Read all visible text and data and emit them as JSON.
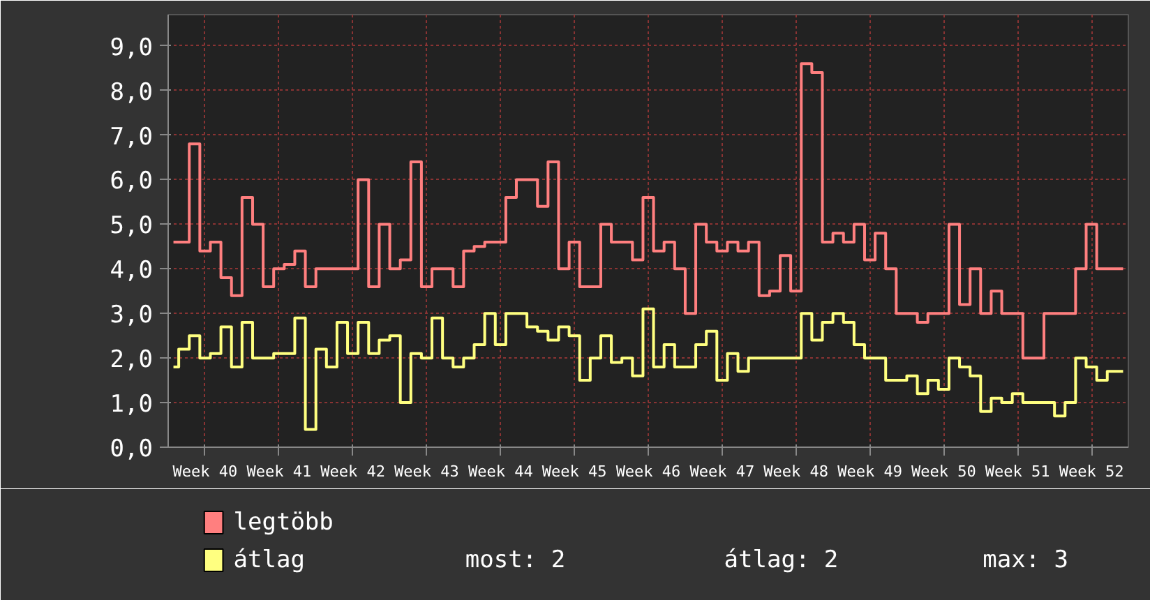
{
  "chart_data": {
    "type": "step",
    "categories": [
      null,
      null,
      null,
      "Week 40",
      null,
      null,
      null,
      null,
      null,
      null,
      "Week 41",
      null,
      null,
      null,
      null,
      null,
      null,
      "Week 42",
      null,
      null,
      null,
      null,
      null,
      null,
      "Week 43",
      null,
      null,
      null,
      null,
      null,
      null,
      "Week 44",
      null,
      null,
      null,
      null,
      null,
      null,
      "Week 45",
      null,
      null,
      null,
      null,
      null,
      null,
      "Week 46",
      null,
      null,
      null,
      null,
      null,
      null,
      "Week 47",
      null,
      null,
      null,
      null,
      null,
      null,
      "Week 48",
      null,
      null,
      null,
      null,
      null,
      null,
      "Week 49",
      null,
      null,
      null,
      null,
      null,
      null,
      "Week 50",
      null,
      null,
      null,
      null,
      null,
      null,
      "Week 51",
      null,
      null,
      null,
      null,
      null,
      null,
      "Week 52",
      null,
      null,
      null
    ],
    "series": [
      {
        "name": "legtöbb",
        "color": "#ff7f7f",
        "values": [
          4.6,
          4.6,
          6.8,
          4.4,
          4.6,
          3.8,
          3.4,
          5.6,
          5.0,
          3.6,
          4.0,
          4.1,
          4.4,
          3.6,
          4.0,
          4.0,
          4.0,
          4.0,
          6.0,
          3.6,
          5.0,
          4.0,
          4.2,
          6.4,
          3.6,
          4.0,
          4.0,
          3.6,
          4.4,
          4.5,
          4.6,
          4.6,
          5.6,
          6.0,
          6.0,
          5.4,
          6.4,
          4.0,
          4.6,
          3.6,
          3.6,
          5.0,
          4.6,
          4.6,
          4.2,
          5.6,
          4.4,
          4.6,
          4.0,
          3.0,
          5.0,
          4.6,
          4.4,
          4.6,
          4.4,
          4.6,
          3.4,
          3.5,
          4.3,
          3.5,
          8.6,
          8.4,
          4.6,
          4.8,
          4.6,
          5.0,
          4.2,
          4.8,
          4.0,
          3.0,
          3.0,
          2.8,
          3.0,
          3.0,
          5.0,
          3.2,
          4.0,
          3.0,
          3.5,
          3.0,
          3.0,
          2.0,
          2.0,
          3.0,
          3.0,
          3.0,
          4.0,
          5.0,
          4.0,
          4.0,
          4.0
        ]
      },
      {
        "name": "átlag",
        "color": "#ffff80",
        "values": [
          1.8,
          2.2,
          2.5,
          2.0,
          2.1,
          2.7,
          1.8,
          2.8,
          2.0,
          2.0,
          2.1,
          2.1,
          2.9,
          0.4,
          2.2,
          1.8,
          2.8,
          2.1,
          2.8,
          2.1,
          2.4,
          2.5,
          1.0,
          2.1,
          2.0,
          2.9,
          2.0,
          1.8,
          2.0,
          2.3,
          3.0,
          2.3,
          3.0,
          3.0,
          2.7,
          2.6,
          2.4,
          2.7,
          2.5,
          1.5,
          2.0,
          2.5,
          1.9,
          2.0,
          1.6,
          3.1,
          1.8,
          2.3,
          1.8,
          1.8,
          2.3,
          2.6,
          1.5,
          2.1,
          1.7,
          2.0,
          2.0,
          2.0,
          2.0,
          2.0,
          3.0,
          2.4,
          2.8,
          3.0,
          2.8,
          2.3,
          2.0,
          2.0,
          1.5,
          1.5,
          1.6,
          1.2,
          1.5,
          1.3,
          2.0,
          1.8,
          1.6,
          0.8,
          1.1,
          1.0,
          1.2,
          1.0,
          1.0,
          1.0,
          0.7,
          1.0,
          2.0,
          1.8,
          1.5,
          1.7,
          1.7
        ]
      }
    ],
    "ylim": [
      0,
      9.7
    ],
    "yticks": [
      {
        "value": 0,
        "label": "0,0"
      },
      {
        "value": 1,
        "label": "1,0"
      },
      {
        "value": 2,
        "label": "2,0"
      },
      {
        "value": 3,
        "label": "3,0"
      },
      {
        "value": 4,
        "label": "4,0"
      },
      {
        "value": 5,
        "label": "5,0"
      },
      {
        "value": 6,
        "label": "6,0"
      },
      {
        "value": 7,
        "label": "7,0"
      },
      {
        "value": 8,
        "label": "8,0"
      },
      {
        "value": 9,
        "label": "9,0"
      }
    ],
    "grid": true,
    "legend": "bottom left",
    "line_style": "solid",
    "annotations": [
      "most: 2",
      "átlag: 2",
      "max: 3"
    ]
  }
}
